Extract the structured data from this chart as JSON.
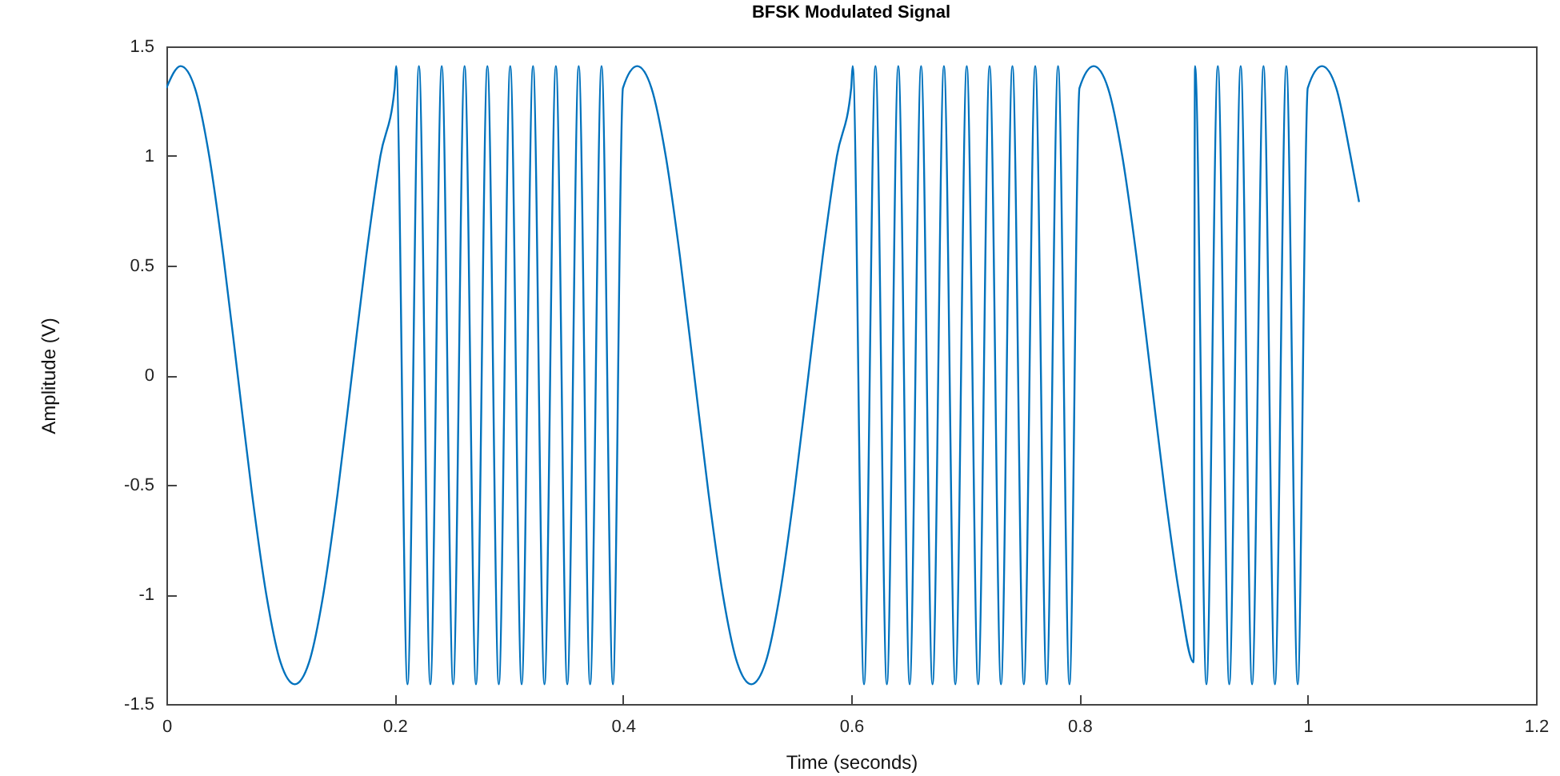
{
  "chart_data": {
    "type": "line",
    "title": "BFSK Modulated Signal",
    "xlabel": "Time (seconds)",
    "ylabel": "Amplitude (V)",
    "xlim": [
      0,
      1.2
    ],
    "xticks": [
      0,
      0.2,
      0.4,
      0.6,
      0.8,
      1,
      1.2
    ],
    "ylim": [
      -1.5,
      1.5
    ],
    "yticks": [
      -1.5,
      -1,
      -0.5,
      0,
      0.5,
      1,
      1.5
    ],
    "grid": false,
    "line_style": "solid",
    "series": [
      {
        "color": "#0072bd",
        "x": [
          0,
          0.0125,
          0.025,
          0.0375,
          0.05,
          0.0625,
          0.075,
          0.0875,
          0.1,
          0.1125,
          0.125,
          0.1375,
          0.15,
          0.1625,
          0.175,
          0.1875,
          0.2,
          0.20125,
          0.21125,
          0.22125,
          0.23125,
          0.24125,
          0.25125,
          0.26125,
          0.27125,
          0.28125,
          0.29125,
          0.30125,
          0.31125,
          0.32125,
          0.33125,
          0.34125,
          0.35125,
          0.36125,
          0.37125,
          0.38125,
          0.39125,
          0.4,
          0.4125,
          0.425,
          0.4375,
          0.45,
          0.4625,
          0.475,
          0.4875,
          0.5,
          0.5125,
          0.525,
          0.5375,
          0.55,
          0.5625,
          0.575,
          0.5875,
          0.6,
          0.60125,
          0.61125,
          0.62125,
          0.63125,
          0.64125,
          0.65125,
          0.66125,
          0.67125,
          0.68125,
          0.69125,
          0.70125,
          0.71125,
          0.72125,
          0.73125,
          0.74125,
          0.75125,
          0.76125,
          0.77125,
          0.78125,
          0.79125,
          0.8,
          0.8125,
          0.825,
          0.8375,
          0.85,
          0.8625,
          0.875,
          0.8875,
          0.9,
          0.90125,
          0.91125,
          0.92125,
          0.93125,
          0.94125,
          0.95125,
          0.96125,
          0.97125,
          0.98125,
          0.99125,
          1,
          1.0125,
          1.025,
          1.0375,
          1.045
        ],
        "values": [
          1.31,
          1.41,
          1.31,
          1,
          0.54,
          0,
          -0.54,
          -1,
          -1.31,
          -1.41,
          -1.31,
          -1,
          -0.54,
          0,
          0.54,
          1,
          1.31,
          1.41,
          -1.41,
          1.41,
          -1.41,
          1.41,
          -1.41,
          1.41,
          -1.41,
          1.41,
          -1.41,
          1.41,
          -1.41,
          1.41,
          -1.41,
          1.41,
          -1.41,
          1.41,
          -1.41,
          1.41,
          -1.41,
          1.31,
          1.41,
          1.31,
          1,
          0.54,
          0,
          -0.54,
          -1,
          -1.31,
          -1.41,
          -1.31,
          -1,
          -0.54,
          0,
          0.54,
          1,
          1.31,
          1.41,
          -1.41,
          1.41,
          -1.41,
          1.41,
          -1.41,
          1.41,
          -1.41,
          1.41,
          -1.41,
          1.41,
          -1.41,
          1.41,
          -1.41,
          1.41,
          -1.41,
          1.41,
          -1.41,
          1.41,
          -1.41,
          1.31,
          1.41,
          1.31,
          1,
          0.54,
          0,
          -0.54,
          -1,
          -1.31,
          1.41,
          -1.41,
          1.41,
          -1.41,
          1.41,
          -1.41,
          1.41,
          -1.41,
          1.41,
          -1.41,
          1.31,
          1.41,
          1.31,
          1,
          0.79
        ]
      }
    ]
  }
}
